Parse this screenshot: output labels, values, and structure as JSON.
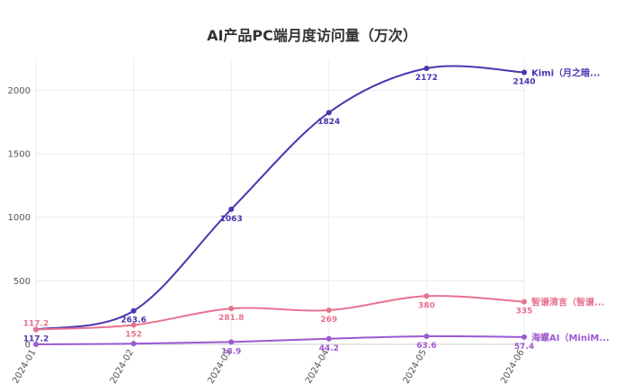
{
  "chart_data": {
    "type": "line",
    "title": "AI产品PC端月度访问量（万次）",
    "x": [
      "2024-01",
      "2024-02",
      "2024-03",
      "2024-04",
      "2024-05",
      "2024-06"
    ],
    "ylim": [
      0,
      2250
    ],
    "yticks": [
      "0",
      "500",
      "1000",
      "1500",
      "2000"
    ],
    "grid": true,
    "series": [
      {
        "name": "Kimi（月之暗...",
        "color": "#4A35B0",
        "values": [
          117.2,
          263.6,
          1063,
          1824,
          2172,
          2140
        ],
        "labels": [
          "117.2",
          "263.6",
          "1063",
          "1824",
          "2172",
          "2140"
        ]
      },
      {
        "name": "智谱清言（智谱...",
        "color": "#E8728F",
        "values": [
          117.2,
          152,
          281.8,
          269,
          380,
          335
        ],
        "labels": [
          "117.2",
          "152",
          "281.8",
          "269",
          "380",
          "335"
        ]
      },
      {
        "name": "海螺AI（MiniM...",
        "color": "#9B59D0",
        "values": [
          0,
          5,
          18.9,
          44.2,
          63.6,
          57.4
        ],
        "labels": [
          "",
          "",
          "18.9",
          "44.2",
          "63.6",
          "57.4"
        ]
      }
    ]
  }
}
